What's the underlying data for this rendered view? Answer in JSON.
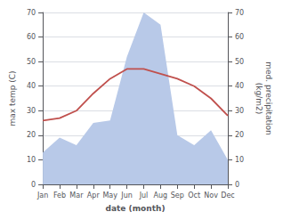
{
  "chart_data": {
    "type": "line",
    "categories": [
      "Jan",
      "Feb",
      "Mar",
      "Apr",
      "May",
      "Jun",
      "Jul",
      "Aug",
      "Sep",
      "Oct",
      "Nov",
      "Dec"
    ],
    "series": [
      {
        "type": "area",
        "color": "#b8c9e8",
        "axis": "y2",
        "values": [
          13,
          19,
          16,
          25,
          26,
          52,
          70,
          65,
          20,
          16,
          22,
          10
        ]
      },
      {
        "type": "line",
        "color": "#c0504d",
        "values": [
          26,
          27,
          30,
          37,
          43,
          47,
          47,
          45,
          43,
          40,
          35,
          28
        ]
      }
    ],
    "xlabel": "date (month)",
    "ylabel": "max temp (C)",
    "y2label": "med. precipitation\n(kg/m2)",
    "ylim": [
      0,
      70
    ],
    "yticks": [
      0,
      10,
      20,
      30,
      40,
      50,
      60,
      70
    ],
    "y2lim": [
      0,
      70
    ],
    "y2ticks": [
      0,
      10,
      20,
      30,
      40,
      50,
      60,
      70
    ],
    "grid": true
  }
}
